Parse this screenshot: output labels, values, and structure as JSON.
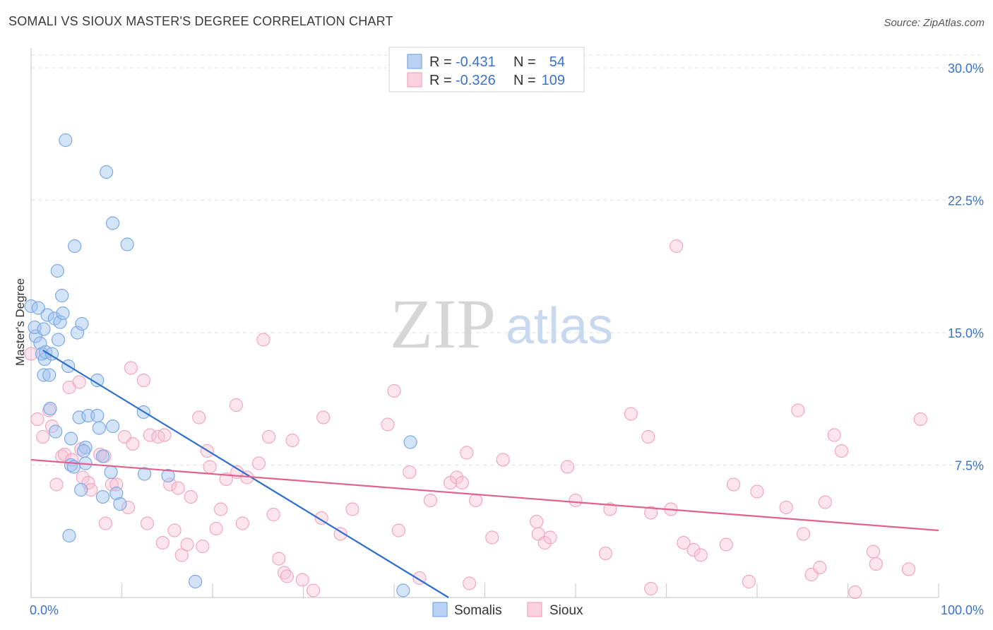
{
  "title": "SOMALI VS SIOUX MASTER'S DEGREE CORRELATION CHART",
  "source": "Source: ZipAtlas.com",
  "watermark": {
    "zip": "ZIP",
    "atlas": "atlas"
  },
  "chart_data": {
    "type": "scatter",
    "title": "SOMALI VS SIOUX MASTER'S DEGREE CORRELATION CHART",
    "xlabel": "",
    "ylabel": "Master's Degree",
    "xlim": [
      0,
      100
    ],
    "ylim": [
      0,
      30
    ],
    "x_tick_labels": [
      "0.0%",
      "100.0%"
    ],
    "y_ticks": [
      7.5,
      15.0,
      22.5,
      30.0
    ],
    "y_tick_labels": [
      "7.5%",
      "15.0%",
      "22.5%",
      "30.0%"
    ],
    "grid": "horizontal dashed",
    "legend_top": [
      {
        "r_label": "R =",
        "r_value": "-0.431",
        "n_label": "N =",
        "n_value": "54"
      },
      {
        "r_label": "R =",
        "r_value": "-0.326",
        "n_label": "N =",
        "n_value": "109"
      }
    ],
    "series": [
      {
        "name": "Somalis",
        "color": "#7aa8e8",
        "line_color": "#2e6fcc",
        "trend": {
          "x": [
            1.3,
            46
          ],
          "y": [
            14.0,
            0.0
          ]
        },
        "points": [
          [
            0,
            16.5
          ],
          [
            0.5,
            14.8
          ],
          [
            0.4,
            15.3
          ],
          [
            0.8,
            16.4
          ],
          [
            1,
            14.4
          ],
          [
            1.2,
            13.8
          ],
          [
            1.4,
            15.2
          ],
          [
            1.5,
            13.5
          ],
          [
            1.6,
            13.9
          ],
          [
            1.4,
            12.6
          ],
          [
            2,
            12.6
          ],
          [
            2.3,
            13.8
          ],
          [
            1.8,
            16.0
          ],
          [
            2.6,
            15.8
          ],
          [
            3.2,
            15.6
          ],
          [
            3.0,
            14.6
          ],
          [
            3.5,
            16.1
          ],
          [
            3.4,
            17.1
          ],
          [
            2.9,
            18.5
          ],
          [
            3.8,
            25.9
          ],
          [
            4.1,
            13.1
          ],
          [
            4.8,
            19.9
          ],
          [
            5.1,
            15.0
          ],
          [
            5.6,
            15.5
          ],
          [
            8.3,
            24.1
          ],
          [
            9.0,
            21.2
          ],
          [
            10.6,
            20.0
          ],
          [
            7.3,
            12.3
          ],
          [
            2.1,
            10.7
          ],
          [
            2.7,
            9.4
          ],
          [
            4.4,
            9.0
          ],
          [
            5.3,
            10.2
          ],
          [
            6.3,
            10.3
          ],
          [
            7.3,
            10.3
          ],
          [
            7.5,
            9.6
          ],
          [
            9.0,
            9.7
          ],
          [
            12.4,
            10.5
          ],
          [
            6.0,
            8.5
          ],
          [
            5.8,
            8.3
          ],
          [
            7.9,
            8.0
          ],
          [
            4.4,
            7.5
          ],
          [
            6.0,
            7.6
          ],
          [
            4.7,
            7.4
          ],
          [
            8.8,
            7.1
          ],
          [
            12.5,
            7.0
          ],
          [
            15.1,
            6.9
          ],
          [
            5.5,
            6.1
          ],
          [
            9.4,
            5.9
          ],
          [
            7.9,
            5.7
          ],
          [
            9.8,
            5.3
          ],
          [
            4.2,
            3.5
          ],
          [
            18.1,
            0.9
          ],
          [
            41.0,
            0.4
          ],
          [
            41.8,
            8.8
          ]
        ]
      },
      {
        "name": "Sioux",
        "color": "#f2a6bf",
        "line_color": "#e0628f",
        "trend": {
          "x": [
            0,
            100
          ],
          "y": [
            7.8,
            3.8
          ]
        },
        "points": [
          [
            0,
            13.8
          ],
          [
            0.7,
            10.1
          ],
          [
            1.3,
            9.1
          ],
          [
            2.0,
            10.6
          ],
          [
            2.3,
            9.7
          ],
          [
            2.8,
            6.4
          ],
          [
            3.4,
            8.0
          ],
          [
            3.7,
            8.1
          ],
          [
            4.2,
            11.9
          ],
          [
            4.5,
            7.8
          ],
          [
            5.3,
            12.2
          ],
          [
            5.5,
            8.4
          ],
          [
            5.7,
            6.8
          ],
          [
            6.3,
            6.5
          ],
          [
            6.6,
            6.1
          ],
          [
            7.6,
            8.1
          ],
          [
            8.1,
            8.0
          ],
          [
            8.2,
            4.2
          ],
          [
            8.9,
            6.4
          ],
          [
            9.4,
            6.4
          ],
          [
            10.3,
            9.1
          ],
          [
            10.7,
            5.1
          ],
          [
            11.0,
            13.0
          ],
          [
            11.2,
            8.7
          ],
          [
            12.4,
            12.3
          ],
          [
            12.8,
            4.2
          ],
          [
            13.1,
            9.2
          ],
          [
            14.0,
            9.1
          ],
          [
            14.5,
            3.1
          ],
          [
            14.7,
            9.2
          ],
          [
            15.3,
            6.4
          ],
          [
            15.8,
            3.8
          ],
          [
            16.2,
            6.2
          ],
          [
            16.6,
            2.4
          ],
          [
            17.2,
            3.0
          ],
          [
            17.6,
            5.7
          ],
          [
            18.5,
            10.2
          ],
          [
            18.9,
            2.9
          ],
          [
            19.4,
            8.3
          ],
          [
            19.7,
            7.4
          ],
          [
            20.4,
            3.9
          ],
          [
            20.9,
            5.0
          ],
          [
            21.5,
            6.7
          ],
          [
            22.6,
            10.9
          ],
          [
            22.7,
            7.1
          ],
          [
            23.3,
            4.2
          ],
          [
            23.8,
            6.8
          ],
          [
            25.1,
            7.6
          ],
          [
            25.6,
            14.6
          ],
          [
            26.2,
            9.1
          ],
          [
            26.7,
            4.7
          ],
          [
            27.3,
            2.2
          ],
          [
            27.9,
            1.4
          ],
          [
            28.2,
            1.2
          ],
          [
            28.8,
            8.9
          ],
          [
            29.9,
            1.0
          ],
          [
            31.1,
            0.4
          ],
          [
            32.0,
            4.5
          ],
          [
            32.2,
            10.2
          ],
          [
            34.1,
            3.6
          ],
          [
            35.4,
            5.0
          ],
          [
            39.3,
            9.8
          ],
          [
            40.0,
            11.7
          ],
          [
            40.5,
            3.8
          ],
          [
            41.7,
            7.1
          ],
          [
            42.8,
            1.1
          ],
          [
            44.0,
            5.5
          ],
          [
            46.2,
            6.5
          ],
          [
            46.9,
            6.8
          ],
          [
            47.5,
            6.5
          ],
          [
            48.0,
            8.2
          ],
          [
            48.3,
            0.8
          ],
          [
            49.0,
            5.5
          ],
          [
            50.8,
            3.4
          ],
          [
            52.0,
            7.8
          ],
          [
            55.7,
            4.3
          ],
          [
            55.9,
            3.6
          ],
          [
            56.6,
            3.1
          ],
          [
            57.2,
            3.4
          ],
          [
            59.1,
            7.4
          ],
          [
            60.0,
            5.5
          ],
          [
            63.3,
            2.5
          ],
          [
            63.8,
            5.0
          ],
          [
            66.1,
            10.4
          ],
          [
            68.0,
            9.1
          ],
          [
            68.3,
            0.5
          ],
          [
            68.3,
            4.8
          ],
          [
            71.1,
            19.9
          ],
          [
            70.5,
            5.0
          ],
          [
            71.9,
            3.1
          ],
          [
            73.0,
            2.7
          ],
          [
            73.8,
            2.4
          ],
          [
            76.6,
            3.0
          ],
          [
            77.4,
            6.4
          ],
          [
            79.1,
            0.9
          ],
          [
            80.0,
            6.0
          ],
          [
            83.2,
            5.1
          ],
          [
            84.5,
            10.6
          ],
          [
            85.1,
            3.6
          ],
          [
            86.0,
            1.3
          ],
          [
            86.9,
            1.7
          ],
          [
            87.5,
            5.4
          ],
          [
            88.5,
            9.2
          ],
          [
            89.3,
            8.3
          ],
          [
            90.8,
            0.3
          ],
          [
            92.8,
            2.6
          ],
          [
            93.1,
            1.9
          ],
          [
            96.7,
            1.6
          ],
          [
            98.0,
            10.1
          ]
        ]
      }
    ]
  }
}
